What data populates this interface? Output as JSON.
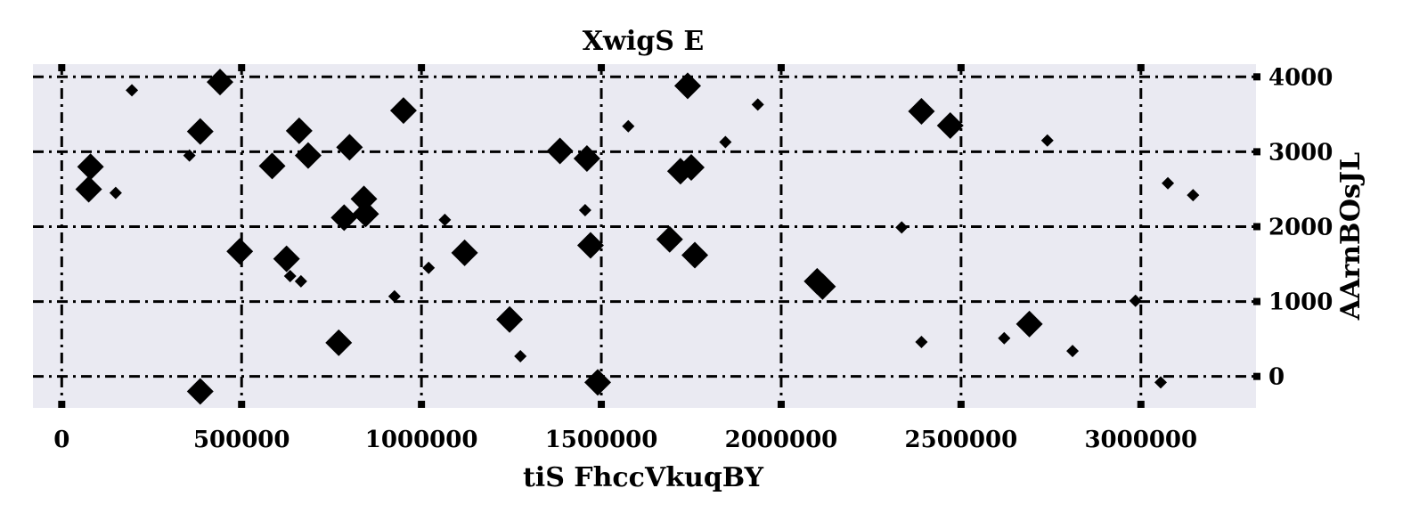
{
  "chart_data": {
    "type": "scatter",
    "title": "XwigS E",
    "xlabel": "tiS FhccVkuqBY",
    "ylabel": "AArnBOsJL",
    "xlim": [
      -80000,
      3320000
    ],
    "ylim": [
      -420,
      4170
    ],
    "xticks": [
      0,
      500000,
      1000000,
      1500000,
      2000000,
      2500000,
      3000000
    ],
    "xtick_labels": [
      "0",
      "500000",
      "1000000",
      "1500000",
      "2000000",
      "2500000",
      "3000000"
    ],
    "yticks": [
      0,
      1000,
      2000,
      3000,
      4000
    ],
    "ytick_labels": [
      "0",
      "1000",
      "2000",
      "3000",
      "4000"
    ],
    "y_axis_side": "right",
    "grid": true,
    "marker": "diamond",
    "colors": {
      "background": "#eaeaf2",
      "marker": "#000000"
    },
    "points": [
      {
        "x": 80000,
        "y": 2800,
        "s": 2
      },
      {
        "x": 75000,
        "y": 2500,
        "s": 2
      },
      {
        "x": 150000,
        "y": 2450,
        "s": 1
      },
      {
        "x": 195000,
        "y": 3820,
        "s": 1
      },
      {
        "x": 355000,
        "y": 2950,
        "s": 1
      },
      {
        "x": 385000,
        "y": 3270,
        "s": 2
      },
      {
        "x": 440000,
        "y": 3930,
        "s": 2
      },
      {
        "x": 385000,
        "y": -200,
        "s": 2
      },
      {
        "x": 495000,
        "y": 1670,
        "s": 2
      },
      {
        "x": 585000,
        "y": 2810,
        "s": 2
      },
      {
        "x": 625000,
        "y": 1570,
        "s": 2
      },
      {
        "x": 635000,
        "y": 1340,
        "s": 1
      },
      {
        "x": 660000,
        "y": 3280,
        "s": 2
      },
      {
        "x": 665000,
        "y": 1270,
        "s": 1
      },
      {
        "x": 685000,
        "y": 2950,
        "s": 2
      },
      {
        "x": 770000,
        "y": 450,
        "s": 2
      },
      {
        "x": 785000,
        "y": 2120,
        "s": 2
      },
      {
        "x": 800000,
        "y": 3060,
        "s": 2
      },
      {
        "x": 840000,
        "y": 2370,
        "s": 2
      },
      {
        "x": 845000,
        "y": 2170,
        "s": 2
      },
      {
        "x": 925000,
        "y": 1070,
        "s": 1
      },
      {
        "x": 950000,
        "y": 3550,
        "s": 2
      },
      {
        "x": 1020000,
        "y": 1450,
        "s": 1
      },
      {
        "x": 1065000,
        "y": 2090,
        "s": 1
      },
      {
        "x": 1120000,
        "y": 1650,
        "s": 2
      },
      {
        "x": 1245000,
        "y": 760,
        "s": 2
      },
      {
        "x": 1275000,
        "y": 270,
        "s": 1
      },
      {
        "x": 1385000,
        "y": 3010,
        "s": 2
      },
      {
        "x": 1460000,
        "y": 2910,
        "s": 2
      },
      {
        "x": 1455000,
        "y": 2220,
        "s": 1
      },
      {
        "x": 1470000,
        "y": 1750,
        "s": 2
      },
      {
        "x": 1490000,
        "y": -80,
        "s": 2
      },
      {
        "x": 1575000,
        "y": 3340,
        "s": 1
      },
      {
        "x": 1690000,
        "y": 1830,
        "s": 2
      },
      {
        "x": 1720000,
        "y": 2740,
        "s": 2
      },
      {
        "x": 1750000,
        "y": 2790,
        "s": 2
      },
      {
        "x": 1740000,
        "y": 3880,
        "s": 2
      },
      {
        "x": 1760000,
        "y": 1620,
        "s": 2
      },
      {
        "x": 1845000,
        "y": 3130,
        "s": 1
      },
      {
        "x": 1935000,
        "y": 3630,
        "s": 1
      },
      {
        "x": 2100000,
        "y": 1270,
        "s": 2
      },
      {
        "x": 2115000,
        "y": 1200,
        "s": 2
      },
      {
        "x": 2335000,
        "y": 1990,
        "s": 1
      },
      {
        "x": 2390000,
        "y": 3540,
        "s": 2
      },
      {
        "x": 2390000,
        "y": 460,
        "s": 1
      },
      {
        "x": 2470000,
        "y": 3350,
        "s": 2
      },
      {
        "x": 2620000,
        "y": 510,
        "s": 1
      },
      {
        "x": 2690000,
        "y": 700,
        "s": 2
      },
      {
        "x": 2740000,
        "y": 3150,
        "s": 1
      },
      {
        "x": 2810000,
        "y": 340,
        "s": 1
      },
      {
        "x": 2985000,
        "y": 1010,
        "s": 1
      },
      {
        "x": 3055000,
        "y": -80,
        "s": 1
      },
      {
        "x": 3075000,
        "y": 2580,
        "s": 1
      },
      {
        "x": 3145000,
        "y": 2420,
        "s": 1
      }
    ]
  }
}
